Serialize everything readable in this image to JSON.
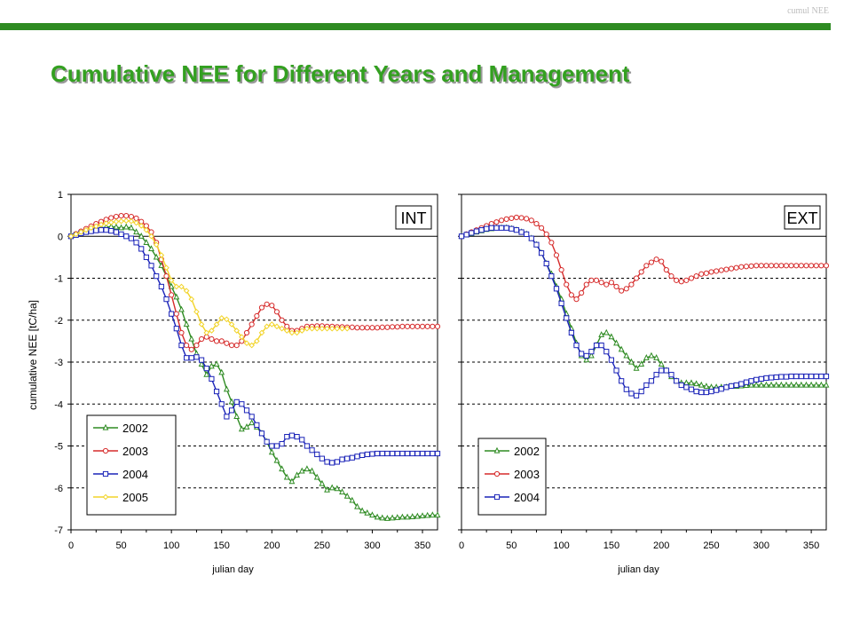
{
  "header": {
    "corner_label": "cumul NEE",
    "title": "Cumulative NEE for Different Years and Management"
  },
  "colors": {
    "accent": "#2e8b22",
    "title": "#33a020",
    "2002": "#2e8b22",
    "2003": "#d62b2b",
    "2004": "#1a23b8",
    "2005": "#f2d42a"
  },
  "chart_data": {
    "type": "line",
    "ylabel": "cumulative NEE  [tC/ha]",
    "xlabel": "julian day",
    "xlim": [
      0,
      365
    ],
    "ylim": [
      -7,
      1
    ],
    "x_ticks": [
      "0",
      "50",
      "100",
      "150",
      "200",
      "250",
      "300",
      "350"
    ],
    "y_ticks": [
      "1",
      "0",
      "-1",
      "-2",
      "-3",
      "-4",
      "-5",
      "-6",
      "-7"
    ],
    "grid": "dashed horizontal gridlines at each integer; solid line at 0",
    "sample_step_days": 5,
    "panels": [
      {
        "label": "INT",
        "legend_position": "bottom-left",
        "series": [
          {
            "name": "2002",
            "marker": "triangle",
            "color": "#2e8b22",
            "values": [
              0,
              0.04,
              0.08,
              0.12,
              0.15,
              0.18,
              0.2,
              0.22,
              0.23,
              0.22,
              0.2,
              0.22,
              0.2,
              0.1,
              0,
              -0.15,
              -0.3,
              -0.5,
              -0.7,
              -0.95,
              -1.2,
              -1.45,
              -1.75,
              -2.1,
              -2.45,
              -2.8,
              -3.05,
              -3.3,
              -3.1,
              -3.05,
              -3.25,
              -3.65,
              -3.95,
              -4.3,
              -4.6,
              -4.55,
              -4.45,
              -4.55,
              -4.7,
              -4.9,
              -5.15,
              -5.35,
              -5.55,
              -5.75,
              -5.85,
              -5.7,
              -5.6,
              -5.55,
              -5.6,
              -5.75,
              -5.9,
              -6.05,
              -6,
              -6.02,
              -6.1,
              -6.2,
              -6.3,
              -6.45,
              -6.55,
              -6.6,
              -6.65,
              -6.7,
              -6.72,
              -6.73,
              -6.72,
              -6.71,
              -6.7,
              -6.7,
              -6.69,
              -6.68,
              -6.67,
              -6.66,
              -6.65,
              -6.65
            ]
          },
          {
            "name": "2003",
            "marker": "circle",
            "color": "#d62b2b",
            "values": [
              0,
              0.06,
              0.12,
              0.18,
              0.24,
              0.3,
              0.35,
              0.4,
              0.44,
              0.47,
              0.49,
              0.49,
              0.47,
              0.43,
              0.35,
              0.25,
              0.1,
              -0.15,
              -0.55,
              -0.95,
              -1.4,
              -1.85,
              -2.3,
              -2.6,
              -2.7,
              -2.6,
              -2.45,
              -2.4,
              -2.45,
              -2.5,
              -2.5,
              -2.55,
              -2.6,
              -2.6,
              -2.5,
              -2.3,
              -2.1,
              -1.9,
              -1.7,
              -1.62,
              -1.65,
              -1.8,
              -2,
              -2.15,
              -2.25,
              -2.25,
              -2.2,
              -2.15,
              -2.15,
              -2.14,
              -2.14,
              -2.15,
              -2.15,
              -2.16,
              -2.16,
              -2.17,
              -2.17,
              -2.18,
              -2.18,
              -2.18,
              -2.18,
              -2.18,
              -2.17,
              -2.17,
              -2.16,
              -2.16,
              -2.15,
              -2.15,
              -2.15,
              -2.15,
              -2.15,
              -2.15,
              -2.15,
              -2.15
            ]
          },
          {
            "name": "2004",
            "marker": "square",
            "color": "#1a23b8",
            "values": [
              0,
              0.03,
              0.07,
              0.1,
              0.12,
              0.14,
              0.15,
              0.15,
              0.13,
              0.1,
              0.05,
              0,
              -0.05,
              -0.15,
              -0.3,
              -0.5,
              -0.7,
              -0.95,
              -1.2,
              -1.5,
              -1.85,
              -2.2,
              -2.6,
              -2.9,
              -2.9,
              -2.88,
              -2.95,
              -3.15,
              -3.4,
              -3.7,
              -4,
              -4.3,
              -4.15,
              -3.95,
              -4,
              -4.15,
              -4.3,
              -4.5,
              -4.7,
              -4.9,
              -5,
              -5,
              -4.95,
              -4.78,
              -4.75,
              -4.78,
              -4.85,
              -5,
              -5.1,
              -5.2,
              -5.3,
              -5.38,
              -5.4,
              -5.38,
              -5.32,
              -5.3,
              -5.28,
              -5.25,
              -5.22,
              -5.2,
              -5.19,
              -5.18,
              -5.18,
              -5.18,
              -5.18,
              -5.18,
              -5.18,
              -5.18,
              -5.18,
              -5.18,
              -5.18,
              -5.18,
              -5.18,
              -5.18
            ]
          },
          {
            "name": "2005",
            "marker": "diamond",
            "color": "#f2d42a",
            "values": [
              0,
              0.05,
              0.1,
              0.15,
              0.2,
              0.24,
              0.28,
              0.31,
              0.33,
              0.35,
              0.36,
              0.37,
              0.36,
              0.32,
              0.25,
              0.15,
              0,
              -0.2,
              -0.45,
              -0.75,
              -1.05,
              -1.2,
              -1.2,
              -1.3,
              -1.5,
              -1.8,
              -2.1,
              -2.3,
              -2.25,
              -2.1,
              -1.95,
              -1.98,
              -2.1,
              -2.25,
              -2.4,
              -2.55,
              -2.6,
              -2.5,
              -2.3,
              -2.15,
              -2.1,
              -2.15,
              -2.2,
              -2.25,
              -2.3,
              -2.3,
              -2.25,
              -2.2,
              -2.2,
              -2.2,
              -2.2,
              -2.2,
              -2.2,
              -2.2,
              -2.2,
              -2.2
            ]
          }
        ]
      },
      {
        "label": "EXT",
        "legend_position": "bottom-left",
        "series": [
          {
            "name": "2002",
            "marker": "triangle",
            "color": "#2e8b22",
            "values": [
              0,
              0.03,
              0.06,
              0.1,
              0.13,
              0.16,
              0.18,
              0.2,
              0.2,
              0.2,
              0.18,
              0.15,
              0.1,
              0.05,
              -0.05,
              -0.2,
              -0.4,
              -0.65,
              -0.9,
              -1.2,
              -1.5,
              -1.85,
              -2.2,
              -2.55,
              -2.85,
              -2.95,
              -2.85,
              -2.6,
              -2.35,
              -2.3,
              -2.4,
              -2.55,
              -2.7,
              -2.85,
              -3,
              -3.15,
              -3.05,
              -2.9,
              -2.85,
              -2.9,
              -3.05,
              -3.2,
              -3.35,
              -3.45,
              -3.5,
              -3.5,
              -3.5,
              -3.52,
              -3.55,
              -3.58,
              -3.6,
              -3.6,
              -3.6,
              -3.6,
              -3.58,
              -3.58,
              -3.57,
              -3.56,
              -3.55,
              -3.55,
              -3.55,
              -3.55,
              -3.55,
              -3.55,
              -3.55,
              -3.55,
              -3.55,
              -3.55,
              -3.55,
              -3.55,
              -3.55,
              -3.55,
              -3.55,
              -3.55
            ]
          },
          {
            "name": "2003",
            "marker": "circle",
            "color": "#d62b2b",
            "values": [
              0,
              0.05,
              0.1,
              0.15,
              0.2,
              0.25,
              0.3,
              0.34,
              0.38,
              0.41,
              0.43,
              0.45,
              0.44,
              0.42,
              0.38,
              0.3,
              0.2,
              0.05,
              -0.15,
              -0.45,
              -0.8,
              -1.15,
              -1.4,
              -1.5,
              -1.35,
              -1.15,
              -1.05,
              -1.05,
              -1.1,
              -1.15,
              -1.1,
              -1.2,
              -1.3,
              -1.25,
              -1.15,
              -1,
              -0.85,
              -0.7,
              -0.62,
              -0.55,
              -0.6,
              -0.8,
              -0.95,
              -1.05,
              -1.08,
              -1.05,
              -1.0,
              -0.95,
              -0.9,
              -0.88,
              -0.85,
              -0.83,
              -0.81,
              -0.79,
              -0.77,
              -0.75,
              -0.73,
              -0.72,
              -0.71,
              -0.7,
              -0.7,
              -0.7,
              -0.7,
              -0.7,
              -0.7,
              -0.7,
              -0.7,
              -0.7,
              -0.7,
              -0.7,
              -0.7,
              -0.7,
              -0.7,
              -0.7
            ]
          },
          {
            "name": "2004",
            "marker": "square",
            "color": "#1a23b8",
            "values": [
              0,
              0.04,
              0.08,
              0.12,
              0.15,
              0.18,
              0.2,
              0.2,
              0.2,
              0.2,
              0.18,
              0.15,
              0.1,
              0.05,
              -0.05,
              -0.2,
              -0.4,
              -0.65,
              -0.95,
              -1.25,
              -1.6,
              -1.95,
              -2.3,
              -2.6,
              -2.8,
              -2.85,
              -2.75,
              -2.6,
              -2.6,
              -2.75,
              -2.95,
              -3.2,
              -3.45,
              -3.65,
              -3.75,
              -3.8,
              -3.7,
              -3.55,
              -3.45,
              -3.3,
              -3.2,
              -3.2,
              -3.3,
              -3.45,
              -3.55,
              -3.6,
              -3.65,
              -3.7,
              -3.72,
              -3.72,
              -3.7,
              -3.67,
              -3.64,
              -3.6,
              -3.57,
              -3.55,
              -3.52,
              -3.48,
              -3.45,
              -3.42,
              -3.4,
              -3.38,
              -3.37,
              -3.36,
              -3.35,
              -3.35,
              -3.34,
              -3.34,
              -3.34,
              -3.34,
              -3.34,
              -3.34,
              -3.34,
              -3.34
            ]
          }
        ]
      }
    ]
  }
}
